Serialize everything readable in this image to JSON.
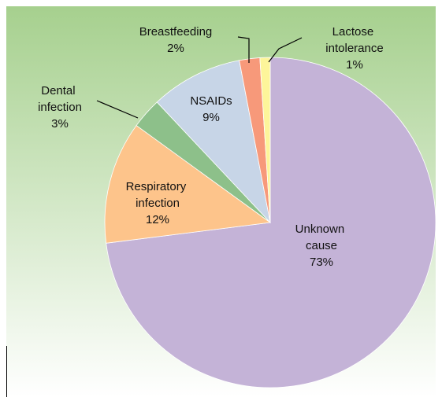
{
  "chart_data": {
    "type": "pie",
    "categories": [
      "Unknown cause",
      "Respiratory infection",
      "Dental infection",
      "NSAIDs",
      "Breastfeeding",
      "Lactose intolerance"
    ],
    "values": [
      73,
      12,
      3,
      9,
      2,
      1
    ],
    "value_labels": [
      "73%",
      "12%",
      "3%",
      "9%",
      "2%",
      "1%"
    ],
    "colors": [
      "#c4b3d7",
      "#fdc48b",
      "#8dc08a",
      "#c7d5e7",
      "#f7997a",
      "#fdf59a"
    ]
  }
}
